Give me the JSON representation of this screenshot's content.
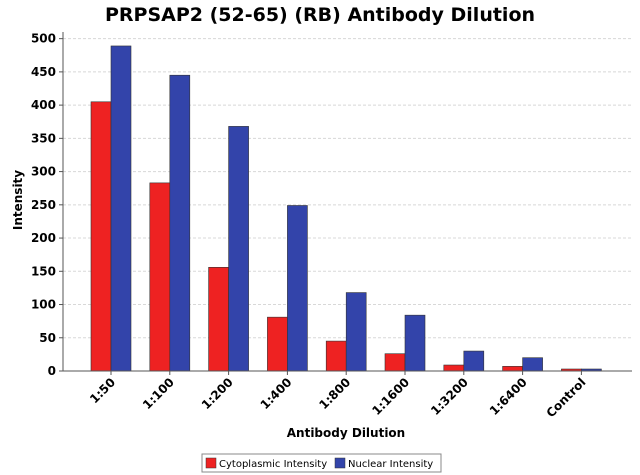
{
  "chart_data": {
    "type": "bar",
    "title": "PRPSAP2 (52-65) (RB) Antibody Dilution",
    "xlabel": "Antibody Dilution",
    "ylabel": "Intensity",
    "ylim": [
      0,
      510
    ],
    "yticks": [
      0,
      50,
      100,
      150,
      200,
      250,
      300,
      350,
      400,
      450,
      500
    ],
    "categories": [
      "1:50",
      "1:100",
      "1:200",
      "1:400",
      "1:800",
      "1:1600",
      "1:3200",
      "1:6400",
      "Control"
    ],
    "series": [
      {
        "name": "Cytoplasmic Intensity",
        "color": "#ee2222",
        "values": [
          405,
          283,
          156,
          81,
          45,
          26,
          9,
          7,
          3
        ]
      },
      {
        "name": "Nuclear Intensity",
        "color": "#3344aa",
        "values": [
          489,
          445,
          368,
          249,
          118,
          84,
          30,
          20,
          3
        ]
      }
    ],
    "grid": true,
    "legend_position": "bottom-center"
  }
}
